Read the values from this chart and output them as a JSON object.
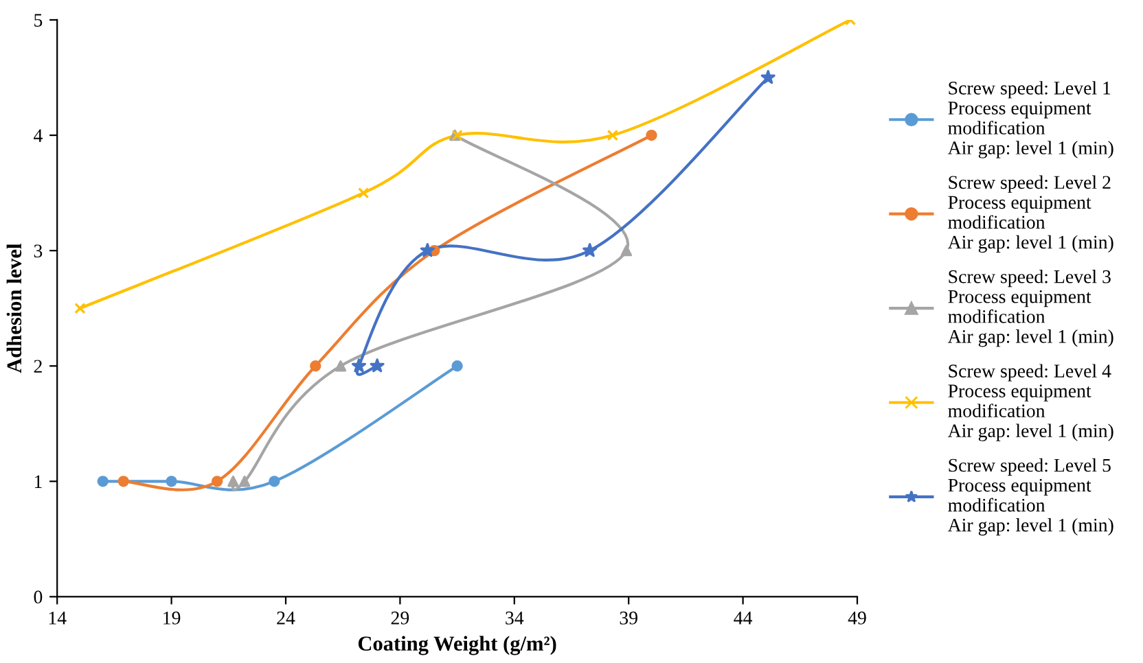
{
  "chart_data": {
    "type": "line",
    "xlabel": "Coating Weight (g/m²)",
    "ylabel": "Adhesion level",
    "xlim": [
      14,
      49
    ],
    "xticks": [
      14,
      19,
      24,
      29,
      34,
      39,
      44,
      49
    ],
    "ylim": [
      0,
      5
    ],
    "yticks": [
      0,
      1,
      2,
      3,
      4,
      5
    ],
    "grid": false,
    "legend": "right",
    "line_style": "solid",
    "series": [
      {
        "name": "Screw speed: Level 1\nProcess equipment\nmodification\nAir gap: level 1 (min)",
        "color": "#5b9bd5",
        "marker": "circle",
        "x": [
          16.0,
          19.0,
          23.5,
          31.5
        ],
        "values": [
          1,
          1,
          1,
          2
        ]
      },
      {
        "name": "Screw speed: Level 2\nProcess equipment\nmodification\nAir gap: level 1 (min)",
        "color": "#ed7d31",
        "marker": "circle",
        "x": [
          16.9,
          21.0,
          25.3,
          30.5,
          40.0
        ],
        "values": [
          1,
          1,
          2,
          3,
          4
        ]
      },
      {
        "name": "Screw speed: Level 3\nProcess equipment\nmodification\nAir gap: level 1 (min)",
        "color": "#a5a5a5",
        "marker": "triangle",
        "x": [
          21.7,
          22.2,
          26.4,
          38.9,
          31.4
        ],
        "values": [
          1,
          1,
          2,
          3,
          4
        ]
      },
      {
        "name": "Screw speed: Level 4\nProcess equipment\nmodification\nAir gap: level 1 (min)",
        "color": "#ffc000",
        "marker": "cross",
        "x": [
          15.0,
          27.4,
          31.5,
          38.3,
          48.7
        ],
        "values": [
          2.5,
          3.5,
          4,
          4,
          5
        ]
      },
      {
        "name": "Screw speed: Level 5\nProcess equipment\nmodification\nAir gap: level 1 (min)",
        "color": "#4472c4",
        "marker": "star",
        "x": [
          28.0,
          27.2,
          30.2,
          37.3,
          45.1
        ],
        "values": [
          2,
          2,
          3,
          3,
          4.5
        ]
      }
    ]
  }
}
